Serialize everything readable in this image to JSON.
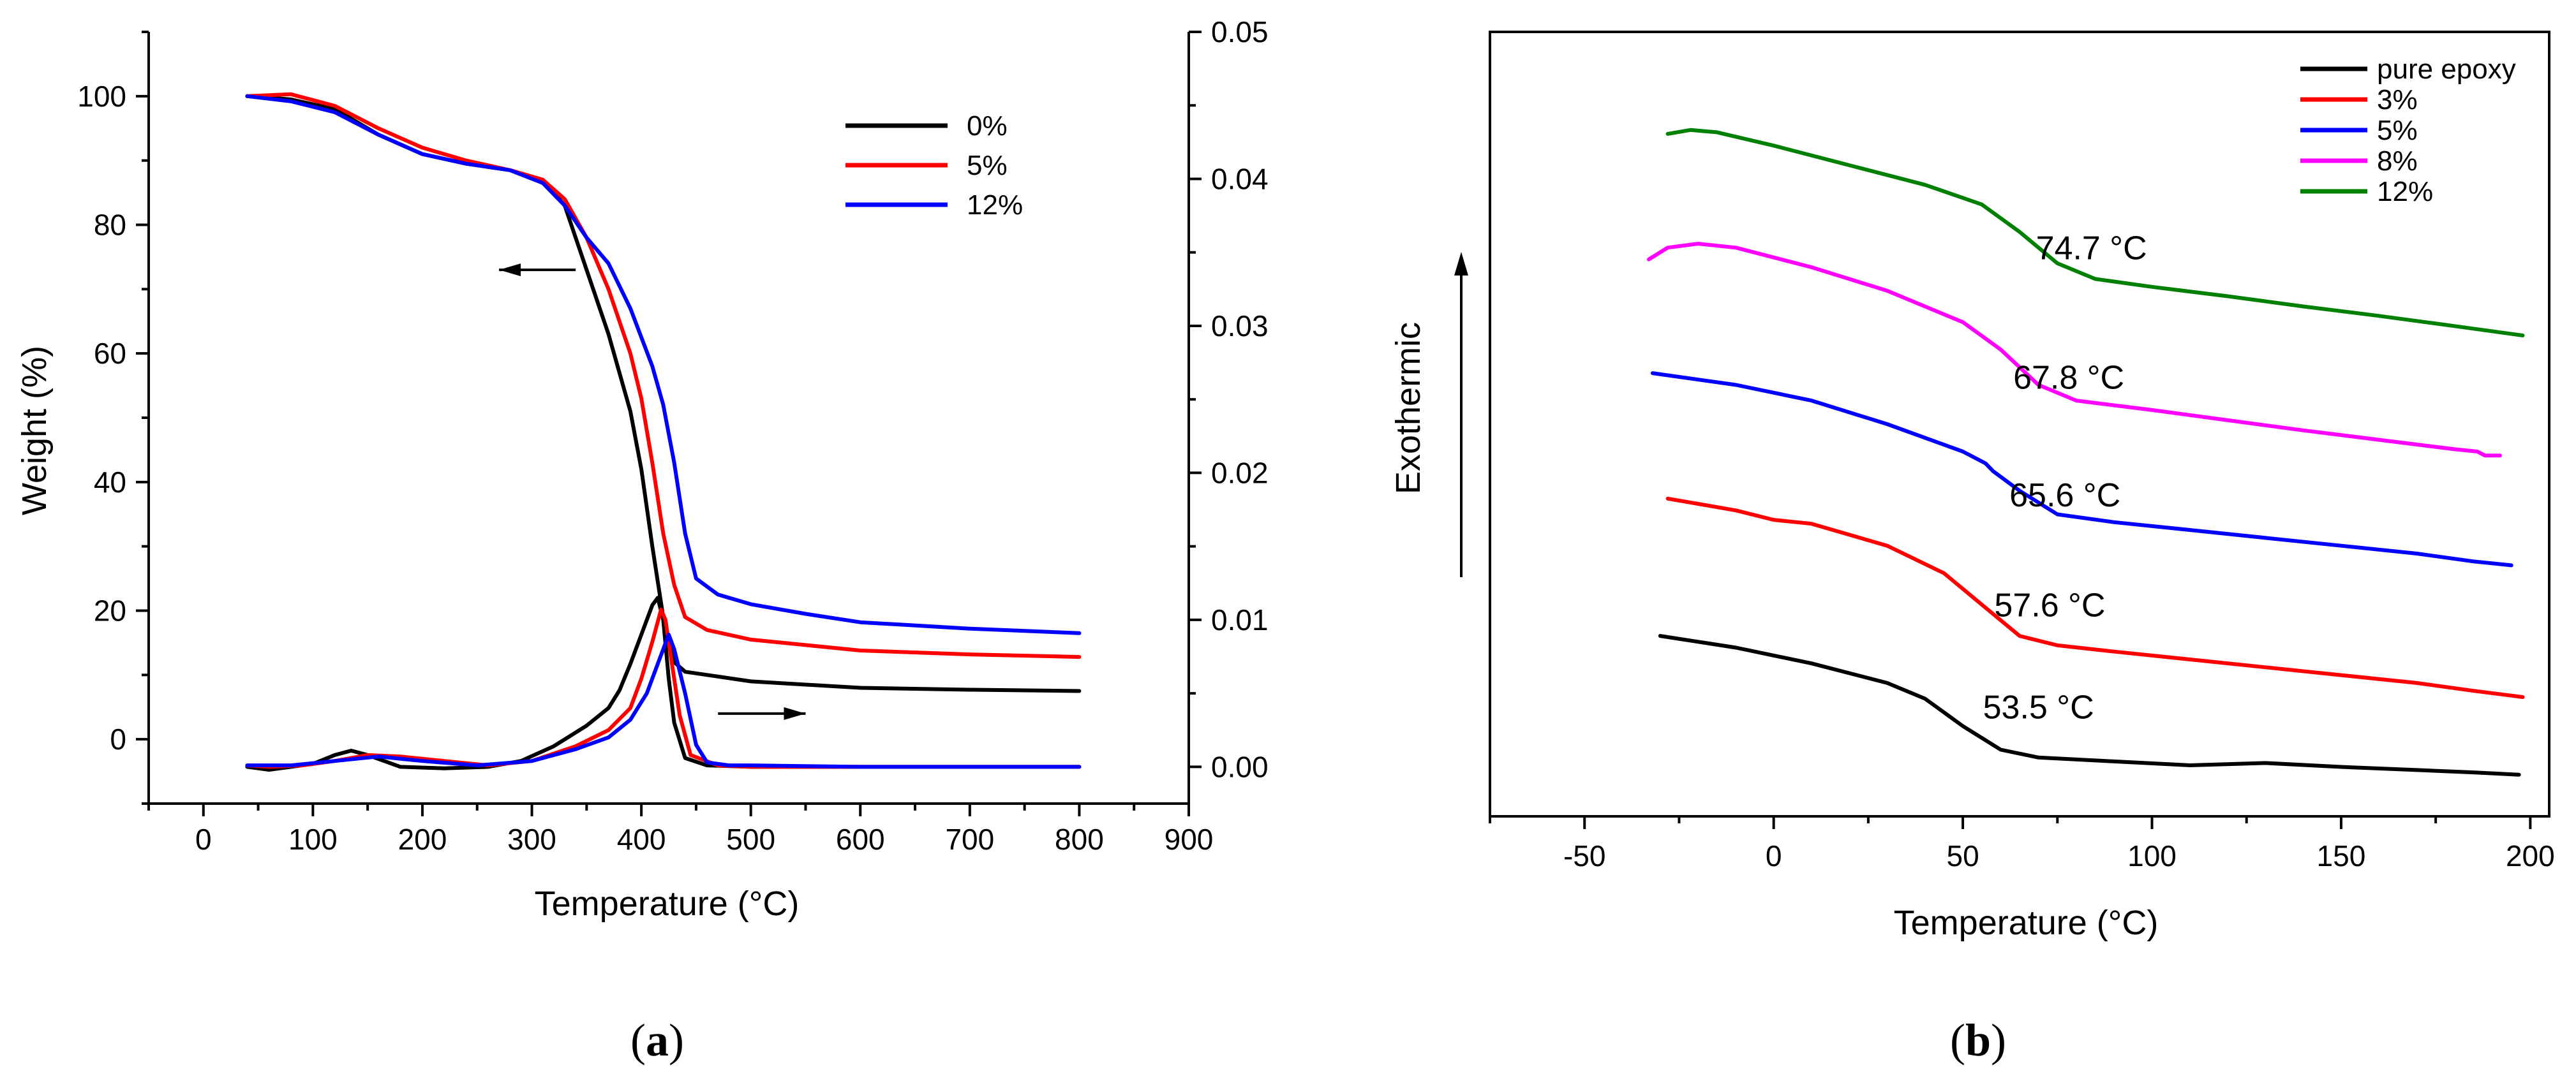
{
  "chart_data": [
    {
      "panel": "a",
      "panel_label": "a",
      "type": "line",
      "xlabel": "Temperature (°C)",
      "ylabel": "Weight (%)",
      "xlim": [
        -50,
        900
      ],
      "ylim": [
        -10,
        110
      ],
      "y2lim": [
        -0.0025,
        0.05
      ],
      "xticks": [
        0,
        100,
        200,
        300,
        400,
        500,
        600,
        700,
        800,
        900
      ],
      "yticks": [
        0,
        20,
        40,
        60,
        80,
        100
      ],
      "y2ticks": [
        0.0,
        0.01,
        0.02,
        0.03,
        0.04,
        0.05
      ],
      "y2tick_labels": [
        "0.00",
        "0.01",
        "0.02",
        "0.03",
        "0.04",
        "0.05"
      ],
      "legend": [
        "0%",
        "5%",
        "12%"
      ],
      "weight_series": [
        {
          "name": "0%",
          "color": "#000000",
          "x": [
            40,
            80,
            120,
            160,
            200,
            240,
            280,
            310,
            330,
            350,
            370,
            390,
            400,
            410,
            420,
            430,
            440,
            460,
            500,
            600,
            700,
            800
          ],
          "y": [
            100,
            99.5,
            98,
            94,
            91,
            89.5,
            88.5,
            87,
            83,
            73,
            63,
            51,
            42,
            30,
            19,
            12,
            10.5,
            10,
            9,
            8,
            7.7,
            7.5
          ]
        },
        {
          "name": "5%",
          "color": "#ff0000",
          "x": [
            40,
            80,
            120,
            160,
            200,
            240,
            280,
            310,
            330,
            350,
            370,
            390,
            400,
            410,
            420,
            430,
            440,
            460,
            500,
            600,
            700,
            800
          ],
          "y": [
            100,
            100.3,
            98.5,
            95,
            92,
            90,
            88.5,
            87,
            84,
            78,
            70,
            60,
            53,
            43,
            32,
            24,
            19,
            17,
            15.5,
            13.8,
            13.2,
            12.8
          ]
        },
        {
          "name": "12%",
          "color": "#0000ff",
          "x": [
            40,
            80,
            120,
            160,
            200,
            240,
            280,
            310,
            330,
            350,
            370,
            390,
            410,
            420,
            430,
            440,
            450,
            470,
            500,
            550,
            600,
            700,
            800
          ],
          "y": [
            100,
            99.2,
            97.5,
            94,
            91,
            89.5,
            88.5,
            86.5,
            83,
            78,
            74,
            67,
            58,
            52,
            43,
            32,
            25,
            22.5,
            21,
            19.5,
            18.2,
            17.2,
            16.5
          ]
        }
      ],
      "dtg_series": [
        {
          "name": "0%",
          "color": "#000000",
          "x": [
            40,
            60,
            80,
            100,
            120,
            135,
            150,
            180,
            220,
            260,
            290,
            320,
            350,
            370,
            380,
            390,
            400,
            410,
            415,
            420,
            425,
            430,
            440,
            460,
            500,
            600,
            700,
            800
          ],
          "y": [
            0.0,
            -0.0002,
            0.0,
            0.0002,
            0.0008,
            0.0011,
            0.0008,
            0.0,
            -0.0001,
            0.0,
            0.0004,
            0.0014,
            0.0028,
            0.004,
            0.0052,
            0.007,
            0.009,
            0.011,
            0.0115,
            0.01,
            0.006,
            0.003,
            0.0006,
            0.0001,
            0.0,
            0.0,
            0.0,
            0.0
          ]
        },
        {
          "name": "5%",
          "color": "#ff0000",
          "x": [
            40,
            60,
            90,
            120,
            150,
            180,
            220,
            260,
            300,
            340,
            370,
            390,
            400,
            410,
            418,
            422,
            428,
            435,
            445,
            470,
            500,
            600,
            700,
            800
          ],
          "y": [
            0.0001,
            0.0,
            0.0001,
            0.0004,
            0.0008,
            0.0007,
            0.0004,
            0.0001,
            0.0004,
            0.0014,
            0.0025,
            0.004,
            0.006,
            0.0085,
            0.0107,
            0.01,
            0.007,
            0.0035,
            0.0008,
            0.0001,
            0.0,
            0.0,
            0.0,
            0.0
          ]
        },
        {
          "name": "12%",
          "color": "#0000ff",
          "x": [
            40,
            80,
            120,
            160,
            200,
            250,
            300,
            340,
            370,
            390,
            405,
            415,
            425,
            430,
            440,
            450,
            460,
            480,
            500,
            600,
            700,
            800
          ],
          "y": [
            0.0001,
            0.0001,
            0.0004,
            0.0007,
            0.0004,
            0.0001,
            0.0004,
            0.0012,
            0.002,
            0.0032,
            0.005,
            0.007,
            0.009,
            0.008,
            0.005,
            0.0015,
            0.0003,
            0.0001,
            0.0001,
            0.0,
            0.0,
            0.0
          ]
        }
      ],
      "arrows": [
        {
          "direction": "left",
          "x": [
            340,
            270
          ],
          "y": 73
        },
        {
          "direction": "right",
          "x": [
            470,
            550
          ],
          "y": 4
        }
      ]
    },
    {
      "panel": "b",
      "panel_label": "b",
      "type": "line",
      "xlabel": "Temperature (°C)",
      "ylabel": "Exothermic",
      "xlim": [
        -75,
        205
      ],
      "ylim": [
        0,
        100
      ],
      "xticks": [
        -50,
        0,
        50,
        100,
        150,
        200
      ],
      "yticks": [],
      "legend": [
        "pure epoxy",
        "3%",
        "5%",
        "8%",
        "12%"
      ],
      "series": [
        {
          "name": "pure epoxy",
          "color": "#000000",
          "x": [
            -30,
            -10,
            10,
            30,
            40,
            50,
            60,
            70,
            90,
            110,
            130,
            150,
            170,
            185,
            197
          ],
          "y": [
            23.0,
            21.5,
            19.5,
            17.0,
            15.0,
            11.5,
            8.5,
            7.5,
            7.0,
            6.5,
            6.8,
            6.3,
            5.9,
            5.6,
            5.3
          ]
        },
        {
          "name": "3%",
          "color": "#ff0000",
          "x": [
            -28,
            -10,
            0,
            10,
            30,
            45,
            55,
            65,
            75,
            90,
            110,
            130,
            150,
            170,
            185,
            198
          ],
          "y": [
            40.5,
            39.0,
            37.8,
            37.3,
            34.5,
            31.0,
            27.0,
            23.0,
            21.8,
            21.0,
            20.0,
            19.0,
            18.0,
            17.0,
            16.0,
            15.2
          ]
        },
        {
          "name": "5%",
          "color": "#0000ff",
          "x": [
            -32,
            -10,
            10,
            30,
            50,
            56,
            58,
            65,
            75,
            90,
            110,
            130,
            150,
            170,
            185,
            195
          ],
          "y": [
            56.5,
            55.0,
            53.0,
            50.0,
            46.5,
            45.0,
            44.0,
            41.5,
            38.5,
            37.5,
            36.5,
            35.5,
            34.5,
            33.5,
            32.5,
            32.0
          ]
        },
        {
          "name": "8%",
          "color": "#ff00ff",
          "x": [
            -33,
            -28,
            -20,
            -10,
            10,
            30,
            50,
            60,
            70,
            80,
            100,
            120,
            140,
            160,
            180,
            186,
            188,
            192
          ],
          "y": [
            71.0,
            72.5,
            73.0,
            72.5,
            70.0,
            67.0,
            63.0,
            59.5,
            55.0,
            53.0,
            51.8,
            50.5,
            49.2,
            48.0,
            46.8,
            46.5,
            46.0,
            46.0
          ]
        },
        {
          "name": "12%",
          "color": "#008000",
          "x": [
            -28,
            -22,
            -15,
            0,
            20,
            40,
            55,
            65,
            75,
            85,
            100,
            120,
            140,
            160,
            180,
            198
          ],
          "y": [
            87.0,
            87.5,
            87.2,
            85.5,
            83.0,
            80.5,
            78.0,
            74.5,
            70.5,
            68.5,
            67.5,
            66.3,
            65.0,
            63.8,
            62.5,
            61.3
          ]
        }
      ],
      "annotations": [
        {
          "text": "53.5 °C",
          "x": 70,
          "y": 12.5
        },
        {
          "text": "57.6 °C",
          "x": 73,
          "y": 25.5
        },
        {
          "text": "65.6 °C",
          "x": 77,
          "y": 39.5
        },
        {
          "text": "67.8 °C",
          "x": 78,
          "y": 54.5
        },
        {
          "text": "74.7 °C",
          "x": 84,
          "y": 71.0
        }
      ]
    }
  ]
}
